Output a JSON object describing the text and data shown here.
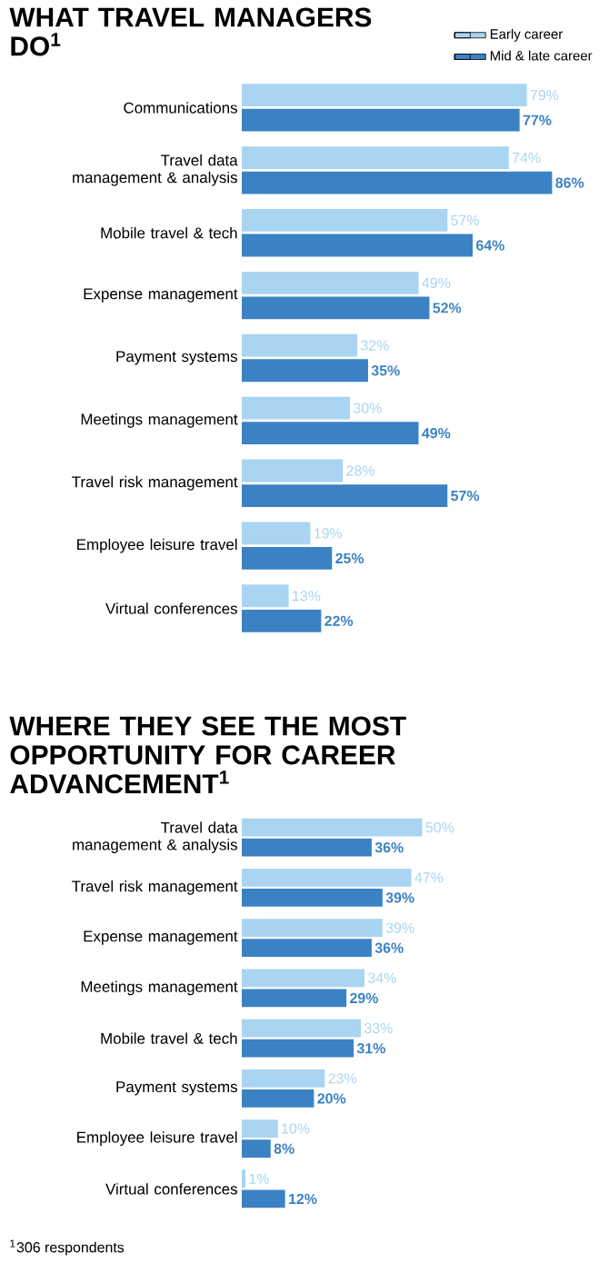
{
  "chart_data": [
    {
      "type": "bar",
      "orientation": "horizontal",
      "title": "WHAT TRAVEL MANAGERS DO$^{1}$",
      "legend": "top right",
      "categories": [
        "Communications",
        "Travel data management & analysis",
        "Mobile travel & tech",
        "Expense management",
        "Payment systems",
        "Meetings management",
        "Travel risk management",
        "Employee leisure travel",
        "Virtual conferences"
      ],
      "series": [
        {
          "name": "Early career",
          "color": "#a9d4f2",
          "values": [
            79,
            74,
            57,
            49,
            32,
            30,
            28,
            19,
            13
          ],
          "value_labels": [
            "79%",
            "74%",
            "57%",
            "49%",
            "32%",
            "30%",
            "28%",
            "19%",
            "13%"
          ]
        },
        {
          "name": "Mid & late career",
          "color": "#3b82c4",
          "values": [
            77,
            86,
            64,
            52,
            35,
            49,
            57,
            25,
            22
          ],
          "value_labels": [
            "77%",
            "86%",
            "64%",
            "52%",
            "35%",
            "49%",
            "57%",
            "25%",
            "22%"
          ]
        }
      ]
    },
    {
      "type": "bar",
      "orientation": "horizontal",
      "title": "WHERE THEY SEE THE MOST OPPORTUNITY FOR CAREER ADVANCEMENT$^{1}$",
      "annotations": [
        "$^{1}$306 respondents"
      ],
      "categories": [
        "Travel data management & analysis",
        "Travel risk management",
        "Expense management",
        "Meetings management",
        "Mobile travel & tech",
        "Payment systems",
        "Employee leisure travel",
        "Virtual conferences"
      ],
      "series": [
        {
          "color": "#a9d4f2",
          "values": [
            50,
            47,
            39,
            34,
            33,
            23,
            10,
            1
          ],
          "value_labels": [
            "50%",
            "47%",
            "39%",
            "34%",
            "33%",
            "23%",
            "10%",
            "1%"
          ]
        },
        {
          "color": "#3b82c4",
          "values": [
            36,
            39,
            36,
            29,
            31,
            20,
            8,
            12
          ],
          "value_labels": [
            "36%",
            "39%",
            "36%",
            "29%",
            "31%",
            "20%",
            "8%",
            "12%"
          ]
        }
      ]
    }
  ]
}
